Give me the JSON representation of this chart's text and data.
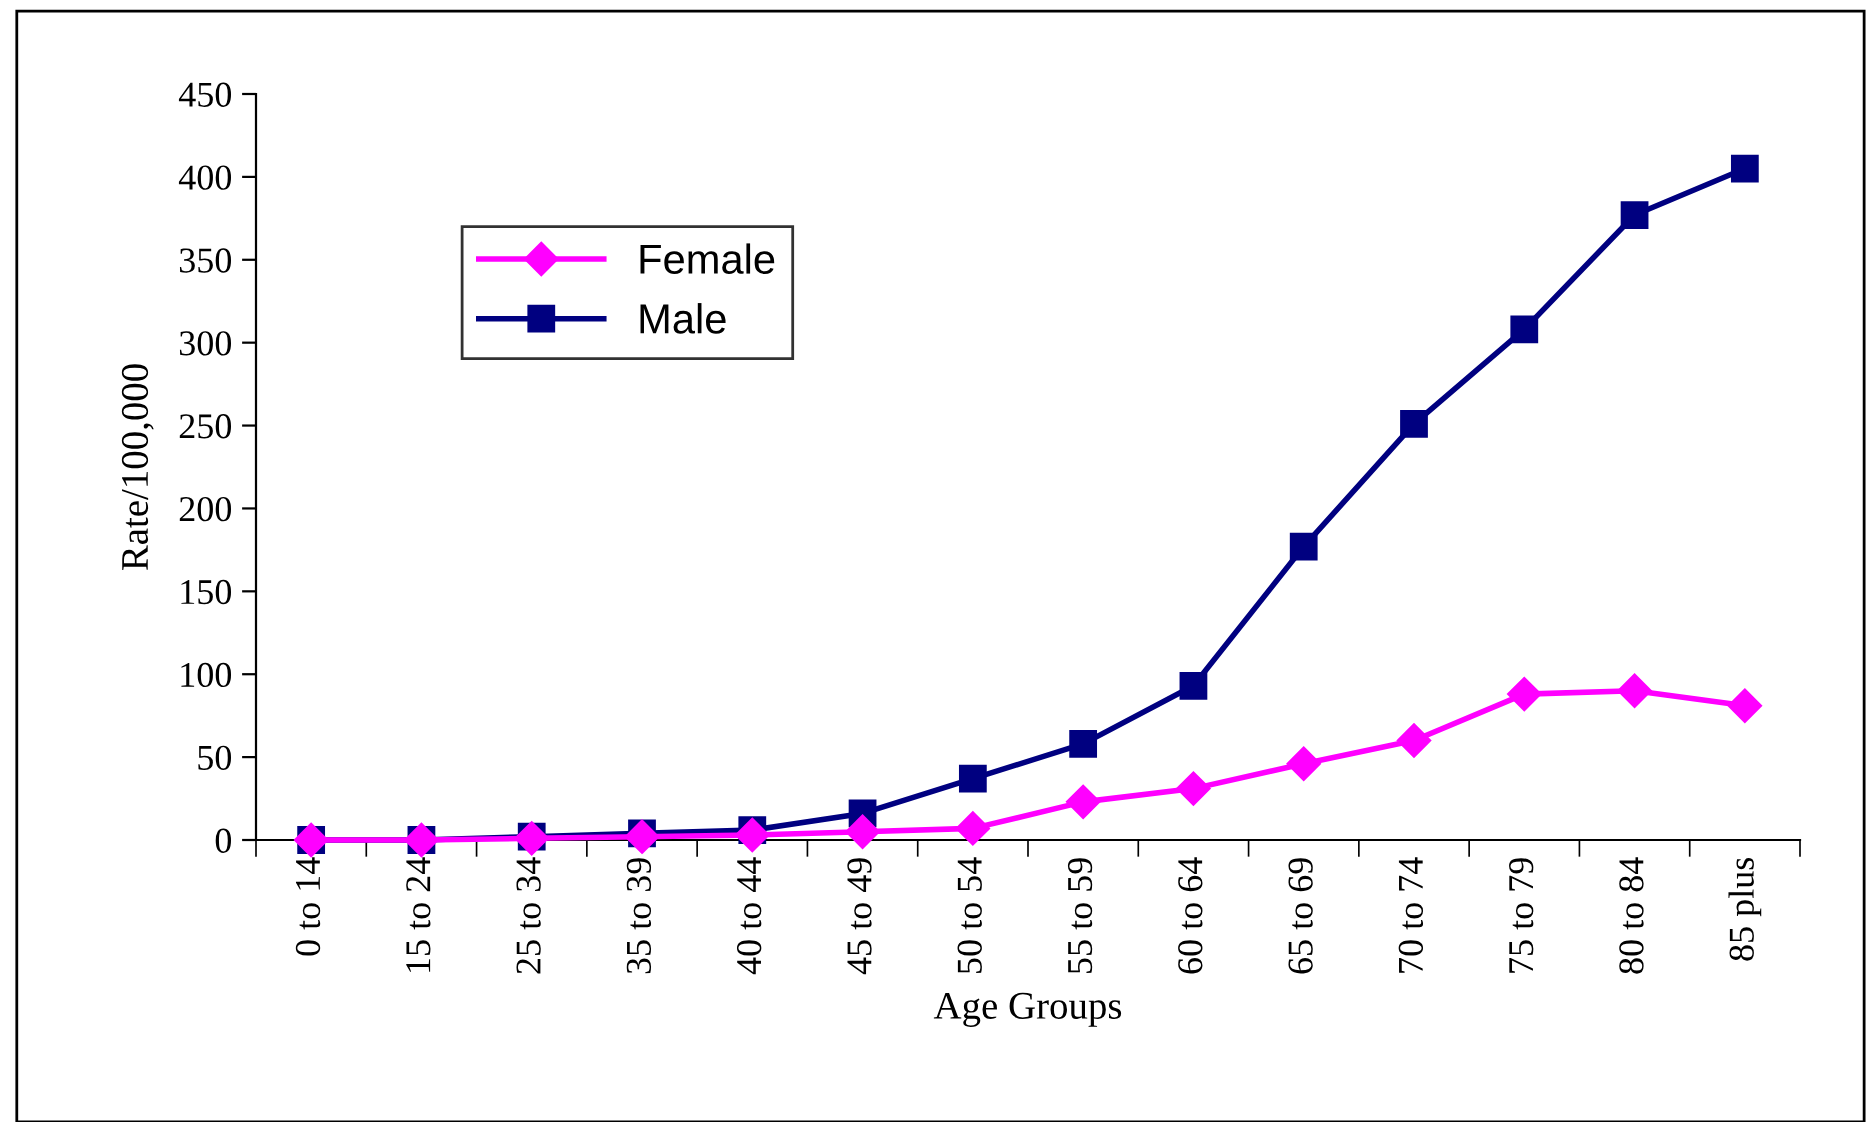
{
  "chart_data": {
    "type": "line",
    "xlabel": "Age Groups",
    "ylabel": "Rate/100,000",
    "categories": [
      "0 to 14",
      "15 to 24",
      "25 to 34",
      "35 to 39",
      "40 to 44",
      "45 to 49",
      "50 to 54",
      "55 to 59",
      "60 to 64",
      "65 to 69",
      "70 to 74",
      "75 to 79",
      "80 to 84",
      "85 plus"
    ],
    "series": [
      {
        "name": "Female",
        "color": "#ff00ff",
        "marker": "diamond",
        "values": [
          0,
          0,
          1,
          2,
          3,
          5,
          7,
          23,
          31,
          46,
          60,
          88,
          90,
          81
        ]
      },
      {
        "name": "Male",
        "color": "#000080",
        "marker": "square",
        "values": [
          0,
          0,
          2,
          4,
          6,
          16,
          37,
          58,
          93,
          177,
          251,
          308,
          377,
          405
        ]
      }
    ],
    "ylim": [
      0,
      450
    ],
    "yticks": [
      0,
      50,
      100,
      150,
      200,
      250,
      300,
      350,
      400,
      450
    ],
    "grid": false,
    "legend": "top left",
    "line_style": "solid"
  }
}
